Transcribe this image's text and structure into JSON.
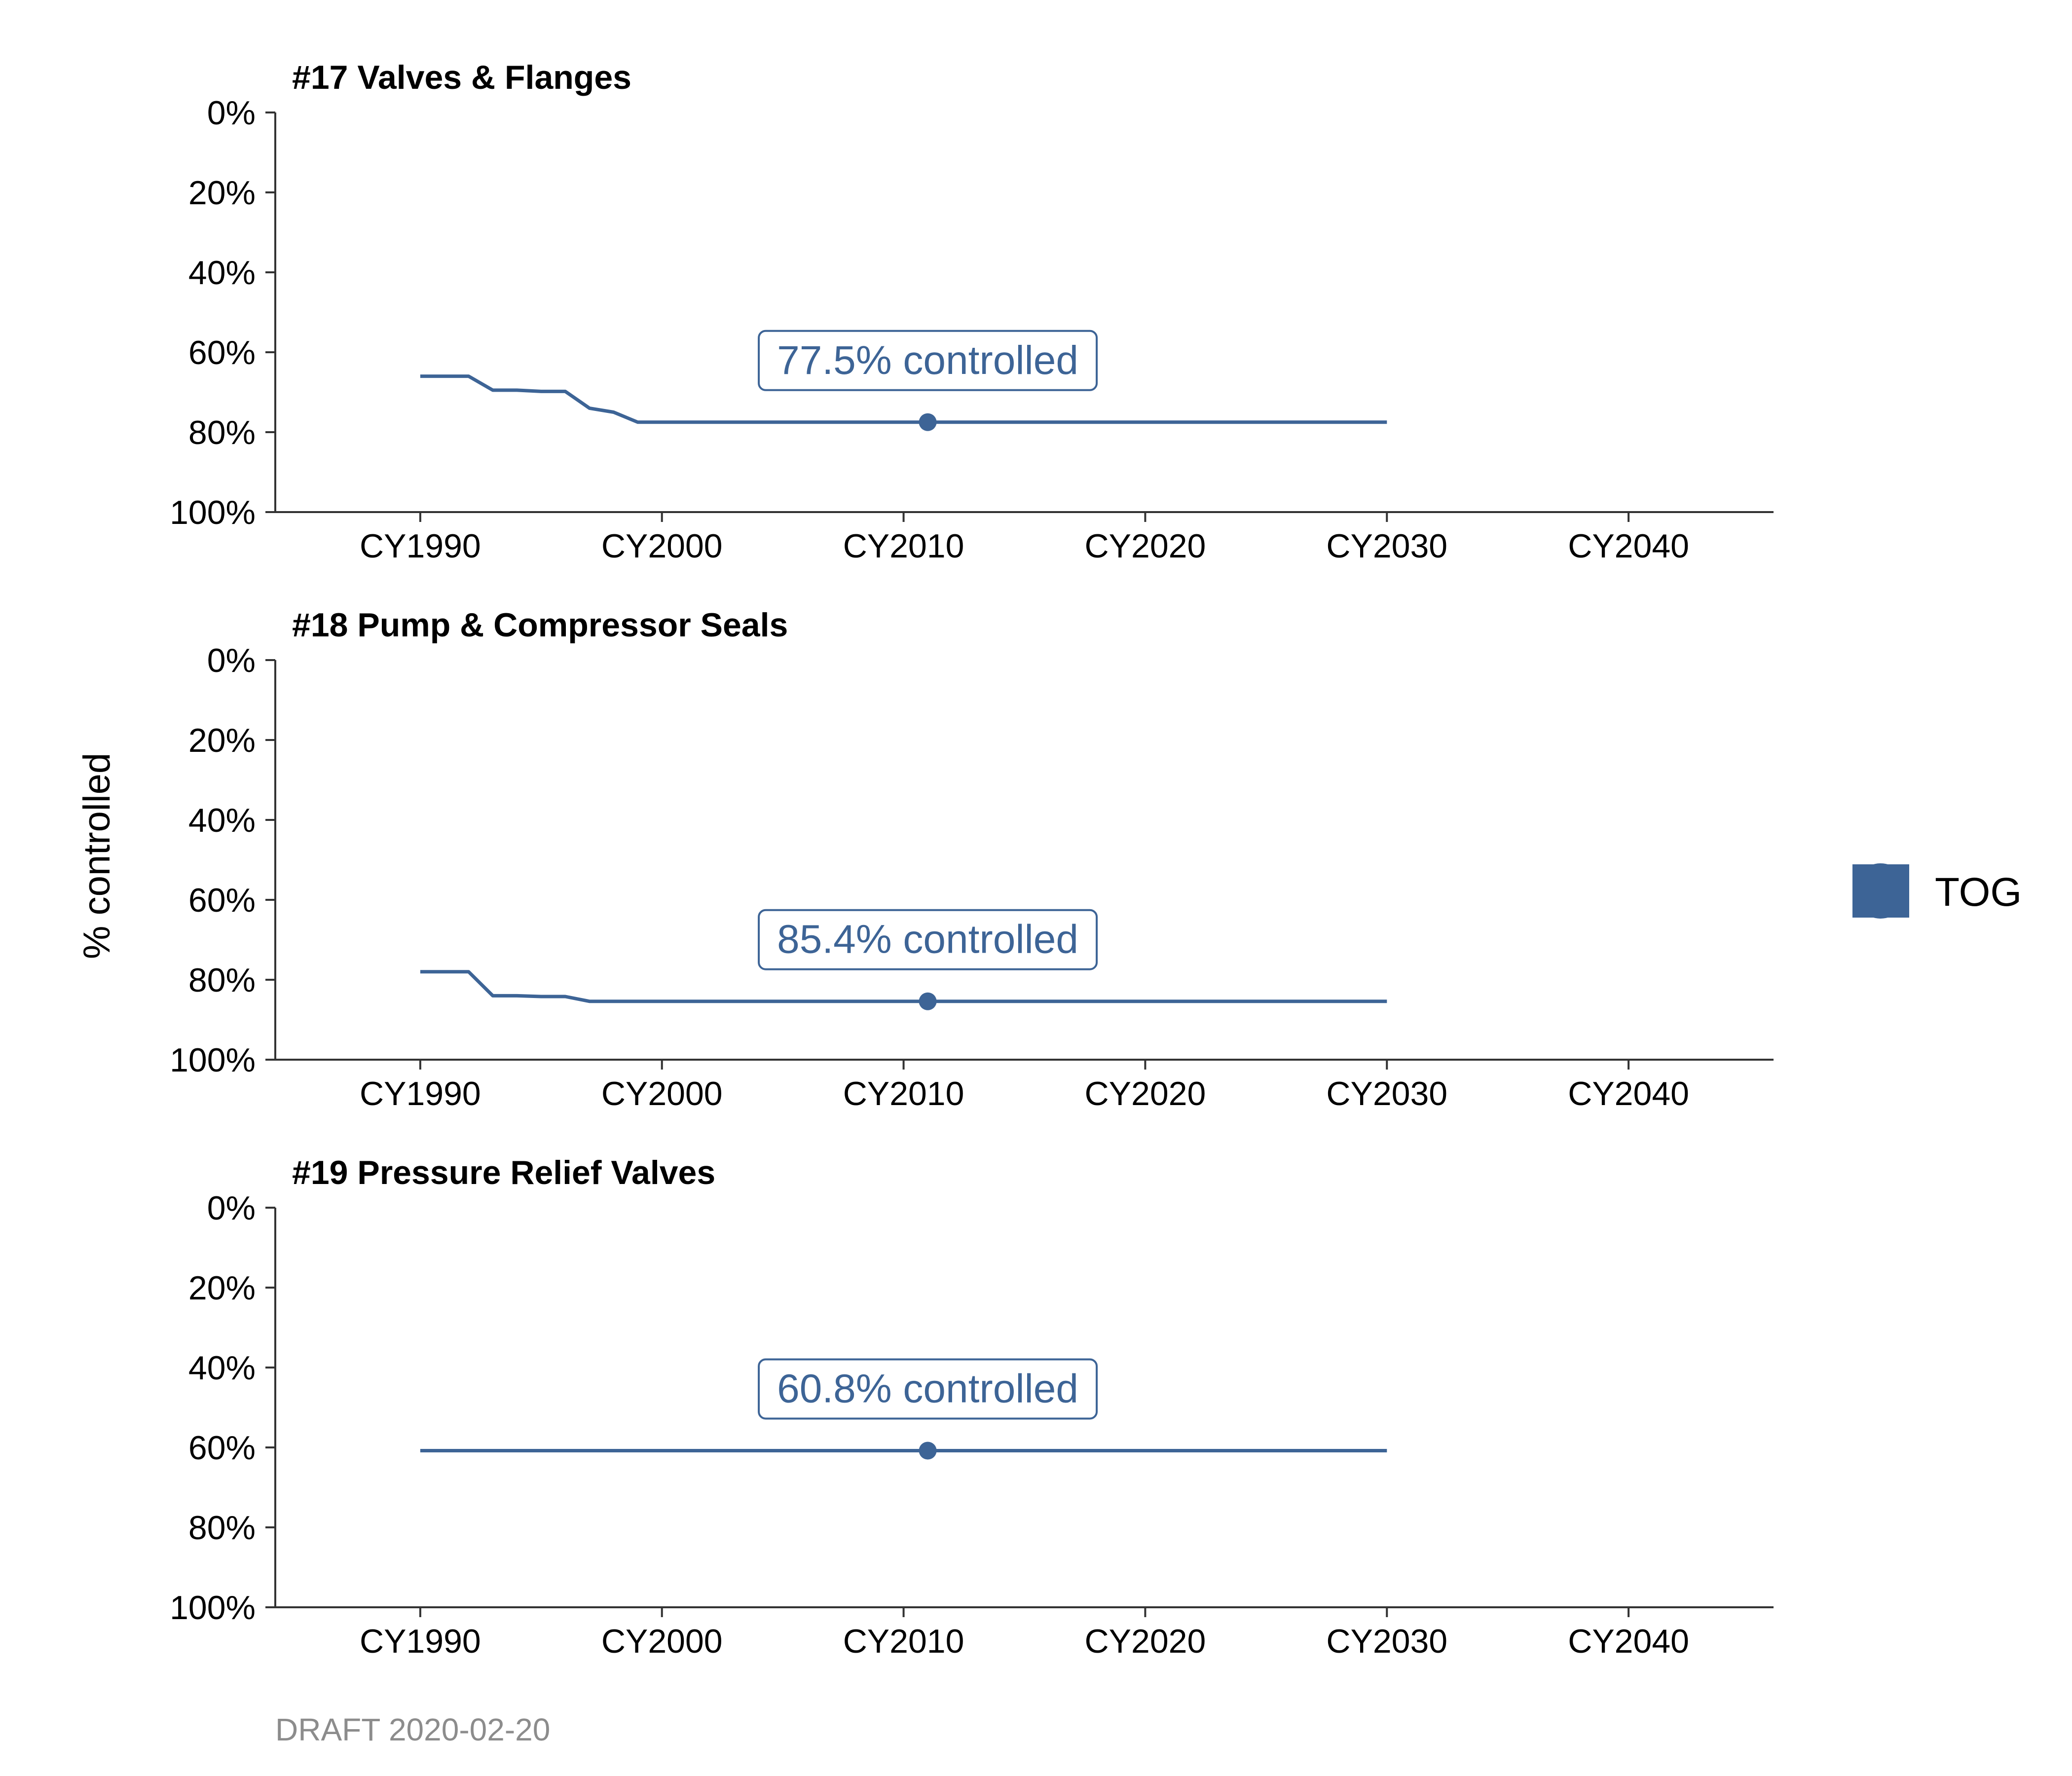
{
  "chart_data": [
    {
      "type": "line",
      "title": "#17 Valves & Flanges",
      "ylim": [
        0,
        100
      ],
      "yreversed": true,
      "yticks": [
        "0%",
        "20%",
        "40%",
        "60%",
        "80%",
        "100%"
      ],
      "xlim": [
        1984,
        2046
      ],
      "xticks": [
        "CY1990",
        "CY2000",
        "CY2010",
        "CY2020",
        "CY2030",
        "CY2040"
      ],
      "series": [
        {
          "name": "TOG",
          "x": [
            1990,
            1992,
            1993,
            1994,
            1995,
            1996,
            1997,
            1998,
            1999,
            2000,
            2011,
            2030
          ],
          "y": [
            66,
            66,
            69.5,
            69.5,
            69.8,
            69.8,
            74,
            75,
            77.5,
            77.5,
            77.5,
            77.5
          ]
        }
      ],
      "highlight": {
        "x": 2011,
        "y": 77.5,
        "label": "77.5% controlled"
      }
    },
    {
      "type": "line",
      "title": "#18 Pump & Compressor Seals",
      "ylim": [
        0,
        100
      ],
      "yreversed": true,
      "yticks": [
        "0%",
        "20%",
        "40%",
        "60%",
        "80%",
        "100%"
      ],
      "xlim": [
        1984,
        2046
      ],
      "xticks": [
        "CY1990",
        "CY2000",
        "CY2010",
        "CY2020",
        "CY2030",
        "CY2040"
      ],
      "series": [
        {
          "name": "TOG",
          "x": [
            1990,
            1992,
            1993,
            1994,
            1995,
            1996,
            1997,
            2000,
            2011,
            2030
          ],
          "y": [
            78,
            78,
            84,
            84,
            84.2,
            84.2,
            85.4,
            85.4,
            85.4,
            85.4
          ]
        }
      ],
      "highlight": {
        "x": 2011,
        "y": 85.4,
        "label": "85.4% controlled"
      }
    },
    {
      "type": "line",
      "title": "#19 Pressure Relief Valves",
      "ylim": [
        0,
        100
      ],
      "yreversed": true,
      "yticks": [
        "0%",
        "20%",
        "40%",
        "60%",
        "80%",
        "100%"
      ],
      "xlim": [
        1984,
        2046
      ],
      "xticks": [
        "CY1990",
        "CY2000",
        "CY2010",
        "CY2020",
        "CY2030",
        "CY2040"
      ],
      "series": [
        {
          "name": "TOG",
          "x": [
            1990,
            2011,
            2030
          ],
          "y": [
            60.8,
            60.8,
            60.8
          ]
        }
      ],
      "highlight": {
        "x": 2011,
        "y": 60.8,
        "label": "60.8% controlled"
      }
    }
  ],
  "ylabel": "% controlled",
  "legend": {
    "label": "TOG",
    "placement": "right"
  },
  "caption": "DRAFT 2020-02-20",
  "colors": {
    "series": "#3d6496",
    "axis": "#333333"
  }
}
